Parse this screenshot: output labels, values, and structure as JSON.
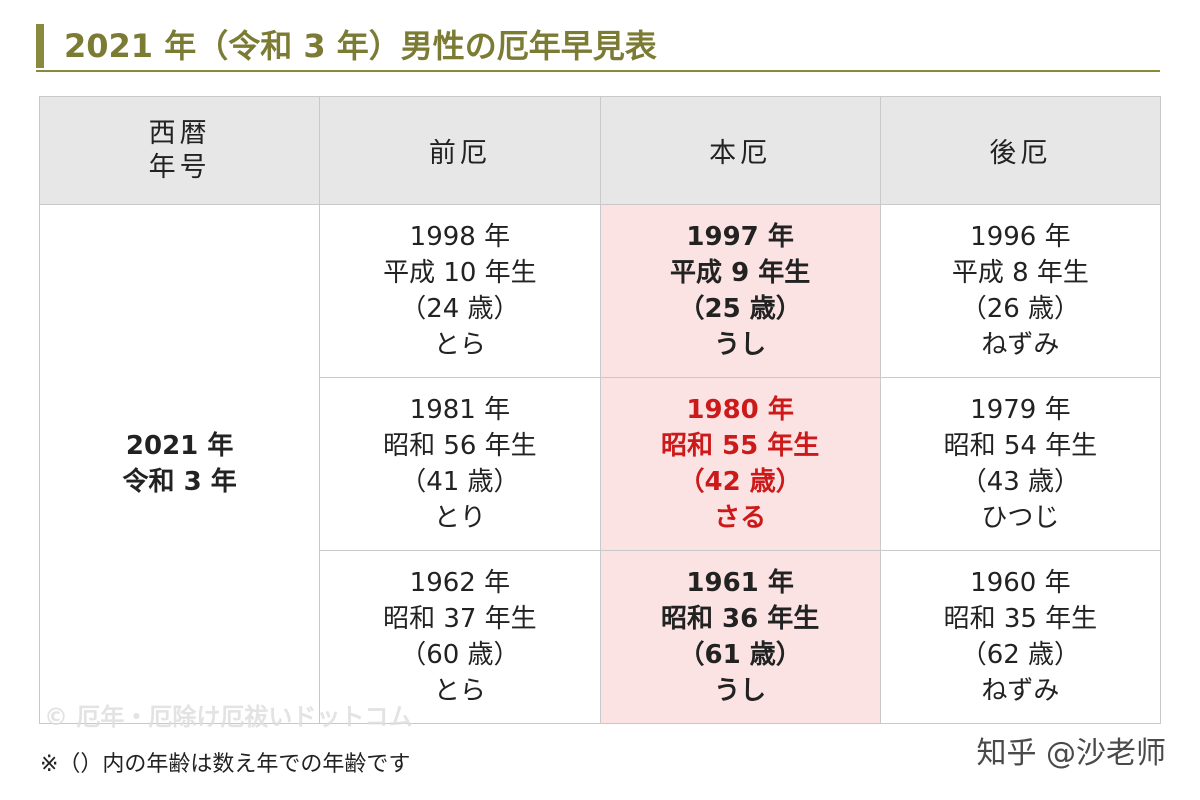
{
  "title": "2021 年（令和 3 年）男性の厄年早見表",
  "table": {
    "headers": {
      "era_line1": "西暦",
      "era_line2": "年号",
      "maeyaku": "前厄",
      "honyaku": "本厄",
      "atoyaku": "後厄"
    },
    "era": {
      "line1": "2021 年",
      "line2": "令和 3 年"
    },
    "rows": [
      {
        "maeyaku": [
          "1998 年",
          "平成 10 年生",
          "（24 歳）",
          "とら"
        ],
        "honyaku": [
          "1997 年",
          "平成 9 年生",
          "（25 歳）",
          "うし"
        ],
        "atoyaku": [
          "1996 年",
          "平成 8 年生",
          "（26 歳）",
          "ねずみ"
        ]
      },
      {
        "maeyaku": [
          "1981 年",
          "昭和 56 年生",
          "（41 歳）",
          "とり"
        ],
        "honyaku": [
          "1980 年",
          "昭和 55 年生",
          "（42 歳）",
          "さる"
        ],
        "atoyaku": [
          "1979 年",
          "昭和 54 年生",
          "（43 歳）",
          "ひつじ"
        ]
      },
      {
        "maeyaku": [
          "1962 年",
          "昭和 37 年生",
          "（60 歳）",
          "とら"
        ],
        "honyaku": [
          "1961 年",
          "昭和 36 年生",
          "（61 歳）",
          "うし"
        ],
        "atoyaku": [
          "1960 年",
          "昭和 35 年生",
          "（62 歳）",
          "ねずみ"
        ]
      }
    ]
  },
  "note": "※（）内の年齢は数え年での年齢です",
  "watermark": "© 厄年・厄除け厄祓いドットコム",
  "credit": "知乎 @沙老师",
  "colors": {
    "accent": "#8a8a3e",
    "title_text": "#7b7b34",
    "header_bg": "#e7e7e7",
    "honyaku_bg": "#fbe3e3",
    "highlight_red": "#cc1a1a"
  }
}
